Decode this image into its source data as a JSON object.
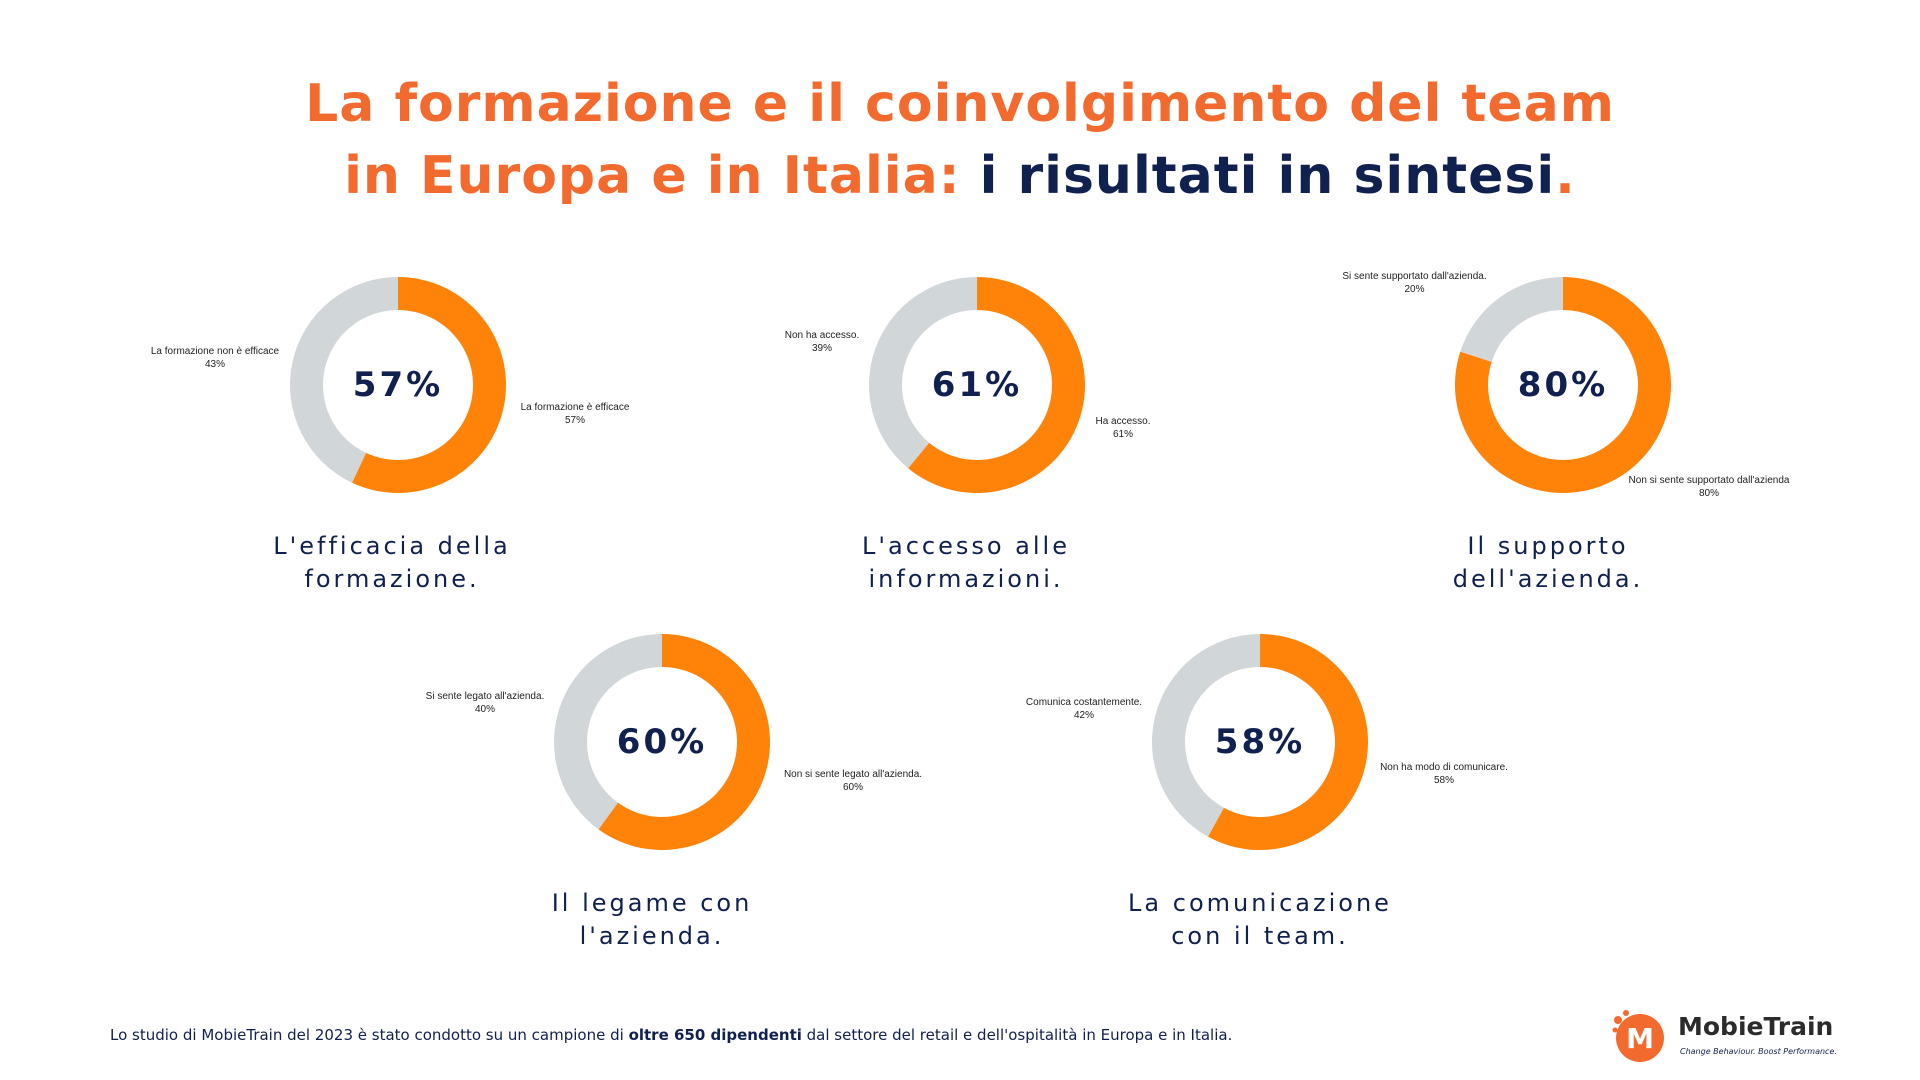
{
  "title": {
    "line1": "La formazione e il coinvolgimento del team",
    "line2_orange": "in Europa e in Italia:",
    "line2_navy": " i risultati in sintesi",
    "line2_dot": "."
  },
  "colors": {
    "accent": "#FF8209",
    "muted": "#D1D6D8",
    "navy": "#10214F",
    "brand_orange": "#F26A2E"
  },
  "chart_data": [
    {
      "type": "pie",
      "center_label": "57%",
      "caption": [
        "L'efficacia della",
        "formazione."
      ],
      "slices": [
        {
          "label": "La formazione è efficace",
          "pct_label": "57%",
          "value": 57,
          "color": "#FF8209"
        },
        {
          "label": "La formazione non è efficace",
          "pct_label": "43%",
          "value": 43,
          "color": "#D1D6D8"
        }
      ]
    },
    {
      "type": "pie",
      "center_label": "61%",
      "caption": [
        "L'accesso alle",
        "informazioni."
      ],
      "slices": [
        {
          "label": "Ha accesso.",
          "pct_label": "61%",
          "value": 61,
          "color": "#FF8209"
        },
        {
          "label": "Non ha accesso.",
          "pct_label": "39%",
          "value": 39,
          "color": "#D1D6D8"
        }
      ]
    },
    {
      "type": "pie",
      "center_label": "80%",
      "caption": [
        "Il supporto",
        "dell'azienda."
      ],
      "slices": [
        {
          "label": "Non si sente supportato dall'azienda",
          "pct_label": "80%",
          "value": 80,
          "color": "#FF8209"
        },
        {
          "label": "Si sente supportato dall'azienda.",
          "pct_label": "20%",
          "value": 20,
          "color": "#D1D6D8"
        }
      ]
    },
    {
      "type": "pie",
      "center_label": "60%",
      "caption": [
        "Il legame con",
        "l'azienda."
      ],
      "slices": [
        {
          "label": "Non si sente legato all'azienda.",
          "pct_label": "60%",
          "value": 60,
          "color": "#FF8209"
        },
        {
          "label": "Si sente legato all'azienda.",
          "pct_label": "40%",
          "value": 40,
          "color": "#D1D6D8"
        }
      ]
    },
    {
      "type": "pie",
      "center_label": "58%",
      "caption": [
        "La comunicazione",
        "con il team."
      ],
      "slices": [
        {
          "label": "Non ha modo di comunicare.",
          "pct_label": "58%",
          "value": 58,
          "color": "#FF8209"
        },
        {
          "label": "Comunica costantemente.",
          "pct_label": "42%",
          "value": 42,
          "color": "#D1D6D8"
        }
      ]
    }
  ],
  "footer": {
    "pre": "Lo studio di MobieTrain del 2023 è stato condotto su un campione di ",
    "bold": "oltre 650 dipendenti",
    "post": " dal settore del retail e dell'ospitalità in Europa e in Italia."
  },
  "logo": {
    "name": "MobieTrain",
    "tagline": "Change Behaviour. Boost Performance.",
    "mark": "M"
  }
}
